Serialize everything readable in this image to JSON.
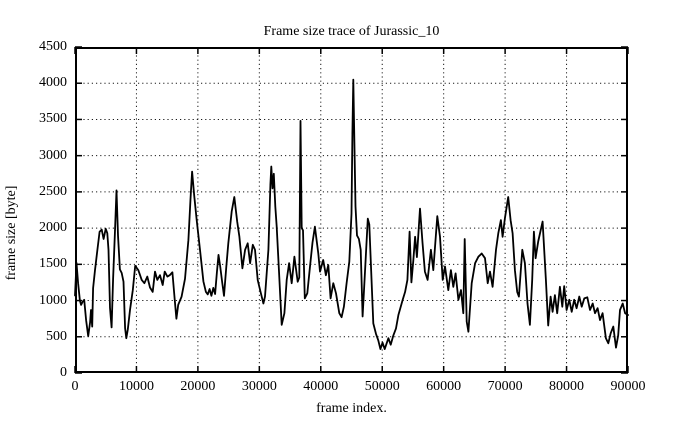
{
  "chart_data": {
    "type": "line",
    "title": "Frame size trace of Jurassic_10",
    "xlabel": "frame index.",
    "ylabel": "frame size [byte]",
    "xlim": [
      0,
      90000
    ],
    "ylim": [
      0,
      4500
    ],
    "xticks": [
      0,
      10000,
      20000,
      30000,
      40000,
      50000,
      60000,
      70000,
      80000,
      90000
    ],
    "yticks": [
      0,
      500,
      1000,
      1500,
      2000,
      2500,
      3000,
      3500,
      4000,
      4500
    ],
    "grid": {
      "show": true,
      "style": "dotted"
    },
    "legend_position": "none",
    "line_color": "#000000",
    "background_color": "#ffffff",
    "series": [
      {
        "name": "frame size",
        "points": [
          [
            0,
            1070
          ],
          [
            250,
            1520
          ],
          [
            500,
            1240
          ],
          [
            800,
            1000
          ],
          [
            1000,
            940
          ],
          [
            1250,
            985
          ],
          [
            1500,
            1010
          ],
          [
            1800,
            730
          ],
          [
            2150,
            510
          ],
          [
            2450,
            700
          ],
          [
            2600,
            870
          ],
          [
            2800,
            640
          ],
          [
            2950,
            1170
          ],
          [
            3250,
            1420
          ],
          [
            3650,
            1700
          ],
          [
            4000,
            1950
          ],
          [
            4350,
            1980
          ],
          [
            4650,
            1850
          ],
          [
            5000,
            1990
          ],
          [
            5250,
            1930
          ],
          [
            5450,
            1700
          ],
          [
            5700,
            900
          ],
          [
            5950,
            630
          ],
          [
            6200,
            1300
          ],
          [
            6500,
            1930
          ],
          [
            6750,
            2520
          ],
          [
            7000,
            1900
          ],
          [
            7300,
            1430
          ],
          [
            7600,
            1380
          ],
          [
            7900,
            1260
          ],
          [
            8150,
            620
          ],
          [
            8350,
            480
          ],
          [
            8600,
            600
          ],
          [
            8950,
            870
          ],
          [
            9400,
            1145
          ],
          [
            9800,
            1480
          ],
          [
            10300,
            1420
          ],
          [
            10850,
            1285
          ],
          [
            11300,
            1240
          ],
          [
            11770,
            1330
          ],
          [
            12210,
            1180
          ],
          [
            12640,
            1120
          ],
          [
            13020,
            1400
          ],
          [
            13400,
            1285
          ],
          [
            13830,
            1350
          ],
          [
            14270,
            1215
          ],
          [
            14600,
            1400
          ],
          [
            15040,
            1330
          ],
          [
            15420,
            1350
          ],
          [
            15850,
            1390
          ],
          [
            16250,
            1000
          ],
          [
            16500,
            750
          ],
          [
            16800,
            940
          ],
          [
            17350,
            1055
          ],
          [
            17900,
            1300
          ],
          [
            18450,
            1835
          ],
          [
            18800,
            2400
          ],
          [
            19050,
            2780
          ],
          [
            19400,
            2450
          ],
          [
            19800,
            2110
          ],
          [
            20350,
            1700
          ],
          [
            20900,
            1265
          ],
          [
            21300,
            1120
          ],
          [
            21600,
            1085
          ],
          [
            21900,
            1160
          ],
          [
            22200,
            1065
          ],
          [
            22500,
            1175
          ],
          [
            22800,
            1090
          ],
          [
            23100,
            1390
          ],
          [
            23350,
            1630
          ],
          [
            23650,
            1460
          ],
          [
            23980,
            1240
          ],
          [
            24250,
            1065
          ],
          [
            24600,
            1450
          ],
          [
            24950,
            1790
          ],
          [
            25500,
            2230
          ],
          [
            25930,
            2430
          ],
          [
            26400,
            2090
          ],
          [
            26750,
            1880
          ],
          [
            27240,
            1445
          ],
          [
            27680,
            1700
          ],
          [
            28100,
            1790
          ],
          [
            28500,
            1515
          ],
          [
            28930,
            1770
          ],
          [
            29300,
            1700
          ],
          [
            29740,
            1285
          ],
          [
            30120,
            1145
          ],
          [
            30660,
            960
          ],
          [
            30930,
            1055
          ],
          [
            31470,
            1700
          ],
          [
            31800,
            2600
          ],
          [
            31950,
            2850
          ],
          [
            32150,
            2550
          ],
          [
            32350,
            2750
          ],
          [
            32600,
            2300
          ],
          [
            32830,
            2020
          ],
          [
            33210,
            1375
          ],
          [
            33640,
            665
          ],
          [
            34080,
            825
          ],
          [
            34460,
            1285
          ],
          [
            34840,
            1515
          ],
          [
            35270,
            1240
          ],
          [
            35710,
            1605
          ],
          [
            36250,
            1260
          ],
          [
            36500,
            1320
          ],
          [
            36700,
            3480
          ],
          [
            36900,
            2000
          ],
          [
            37100,
            1970
          ],
          [
            37400,
            1030
          ],
          [
            37800,
            1100
          ],
          [
            38250,
            1470
          ],
          [
            38650,
            1800
          ],
          [
            39050,
            2020
          ],
          [
            39590,
            1650
          ],
          [
            39880,
            1400
          ],
          [
            40400,
            1560
          ],
          [
            40840,
            1350
          ],
          [
            41220,
            1490
          ],
          [
            41600,
            1030
          ],
          [
            42030,
            1240
          ],
          [
            42470,
            1100
          ],
          [
            43010,
            825
          ],
          [
            43390,
            770
          ],
          [
            43770,
            915
          ],
          [
            44200,
            1240
          ],
          [
            44650,
            1535
          ],
          [
            45000,
            2200
          ],
          [
            45150,
            3300
          ],
          [
            45290,
            4050
          ],
          [
            45450,
            3250
          ],
          [
            45650,
            2300
          ],
          [
            45900,
            1900
          ],
          [
            46200,
            1850
          ],
          [
            46500,
            1700
          ],
          [
            46800,
            780
          ],
          [
            47200,
            1400
          ],
          [
            47650,
            2130
          ],
          [
            47900,
            2050
          ],
          [
            48200,
            1400
          ],
          [
            48550,
            685
          ],
          [
            48980,
            540
          ],
          [
            49360,
            450
          ],
          [
            49700,
            330
          ],
          [
            50050,
            420
          ],
          [
            50400,
            330
          ],
          [
            51000,
            480
          ],
          [
            51380,
            390
          ],
          [
            51820,
            520
          ],
          [
            52250,
            615
          ],
          [
            52630,
            800
          ],
          [
            53340,
            1010
          ],
          [
            53720,
            1120
          ],
          [
            54100,
            1285
          ],
          [
            54450,
            1950
          ],
          [
            54750,
            1250
          ],
          [
            55050,
            1550
          ],
          [
            55350,
            1880
          ],
          [
            55650,
            1600
          ],
          [
            56150,
            2270
          ],
          [
            56550,
            1800
          ],
          [
            56950,
            1400
          ],
          [
            57390,
            1285
          ],
          [
            57930,
            1700
          ],
          [
            58310,
            1420
          ],
          [
            58960,
            2165
          ],
          [
            59400,
            1880
          ],
          [
            59840,
            1285
          ],
          [
            60210,
            1470
          ],
          [
            60750,
            1145
          ],
          [
            61180,
            1420
          ],
          [
            61570,
            1190
          ],
          [
            61950,
            1375
          ],
          [
            62390,
            1010
          ],
          [
            62820,
            1145
          ],
          [
            63200,
            825
          ],
          [
            63430,
            1850
          ],
          [
            63750,
            710
          ],
          [
            64020,
            570
          ],
          [
            64570,
            1240
          ],
          [
            65110,
            1515
          ],
          [
            65650,
            1605
          ],
          [
            66190,
            1650
          ],
          [
            66730,
            1585
          ],
          [
            67160,
            1240
          ],
          [
            67540,
            1400
          ],
          [
            67970,
            1190
          ],
          [
            68510,
            1700
          ],
          [
            68890,
            1930
          ],
          [
            69320,
            2110
          ],
          [
            69590,
            1880
          ],
          [
            69970,
            2135
          ],
          [
            70510,
            2430
          ],
          [
            70890,
            2110
          ],
          [
            71220,
            1930
          ],
          [
            71600,
            1420
          ],
          [
            71970,
            1120
          ],
          [
            72250,
            1055
          ],
          [
            72790,
            1700
          ],
          [
            73220,
            1515
          ],
          [
            73650,
            960
          ],
          [
            74030,
            665
          ],
          [
            74410,
            1285
          ],
          [
            74690,
            1950
          ],
          [
            74960,
            1585
          ],
          [
            75380,
            1815
          ],
          [
            76100,
            2090
          ],
          [
            76640,
            1285
          ],
          [
            77010,
            655
          ],
          [
            77400,
            1055
          ],
          [
            77730,
            845
          ],
          [
            78110,
            1075
          ],
          [
            78480,
            825
          ],
          [
            78920,
            1190
          ],
          [
            79300,
            915
          ],
          [
            79620,
            1200
          ],
          [
            80010,
            870
          ],
          [
            80440,
            1010
          ],
          [
            80830,
            845
          ],
          [
            81250,
            1010
          ],
          [
            81640,
            895
          ],
          [
            82070,
            1055
          ],
          [
            82460,
            915
          ],
          [
            82890,
            1030
          ],
          [
            83380,
            1045
          ],
          [
            83810,
            870
          ],
          [
            84250,
            960
          ],
          [
            84630,
            825
          ],
          [
            85060,
            895
          ],
          [
            85440,
            730
          ],
          [
            85870,
            825
          ],
          [
            86410,
            480
          ],
          [
            86790,
            410
          ],
          [
            87180,
            550
          ],
          [
            87610,
            640
          ],
          [
            88040,
            350
          ],
          [
            88400,
            520
          ],
          [
            88690,
            870
          ],
          [
            89130,
            960
          ],
          [
            89520,
            825
          ],
          [
            90000,
            800
          ]
        ]
      }
    ]
  }
}
